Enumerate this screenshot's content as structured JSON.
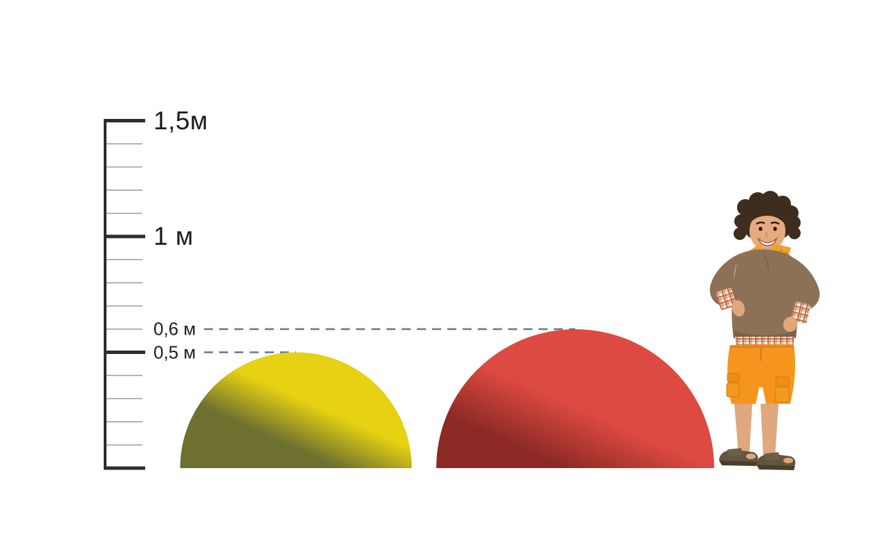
{
  "title": "Dome height comparison with measuring scale",
  "style": {
    "background": "#ffffff",
    "ruler_color": "#2d2d2d",
    "minor_tick_color": "#9b9b9b",
    "guide_color": "#64788a",
    "text_color": "#1c1c1c"
  },
  "chart_data": {
    "type": "bar",
    "variant": "size-comparison-infographic",
    "units": "m",
    "title": "",
    "xlabel": "",
    "ylabel": "",
    "ruler": {
      "min_m": 0,
      "max_m": 1.5,
      "minor_step_m": 0.1,
      "major_step_m": 0.5,
      "labels": [
        {
          "value_m": 1.5,
          "text": "1,5м",
          "size": "large"
        },
        {
          "value_m": 1.0,
          "text": "1 м",
          "size": "large"
        },
        {
          "value_m": 0.6,
          "text": "0,6 м",
          "size": "small"
        },
        {
          "value_m": 0.5,
          "text": "0,5 м",
          "size": "small"
        }
      ]
    },
    "items": [
      {
        "name": "yellow-dome",
        "shape": "hemisphere",
        "height_m": 0.5,
        "color_light": "#e6d113",
        "color_dark": "#6e7030"
      },
      {
        "name": "red-dome",
        "shape": "hemisphere",
        "height_m": 0.6,
        "color_light": "#dd4a41",
        "color_dark": "#8c2925"
      }
    ],
    "guides": [
      {
        "value_m": 0.6,
        "target": "red-dome"
      },
      {
        "value_m": 0.5,
        "target": "yellow-dome"
      }
    ],
    "figure": {
      "name": "child",
      "role": "human scale reference"
    },
    "legend": null,
    "grid": false
  }
}
